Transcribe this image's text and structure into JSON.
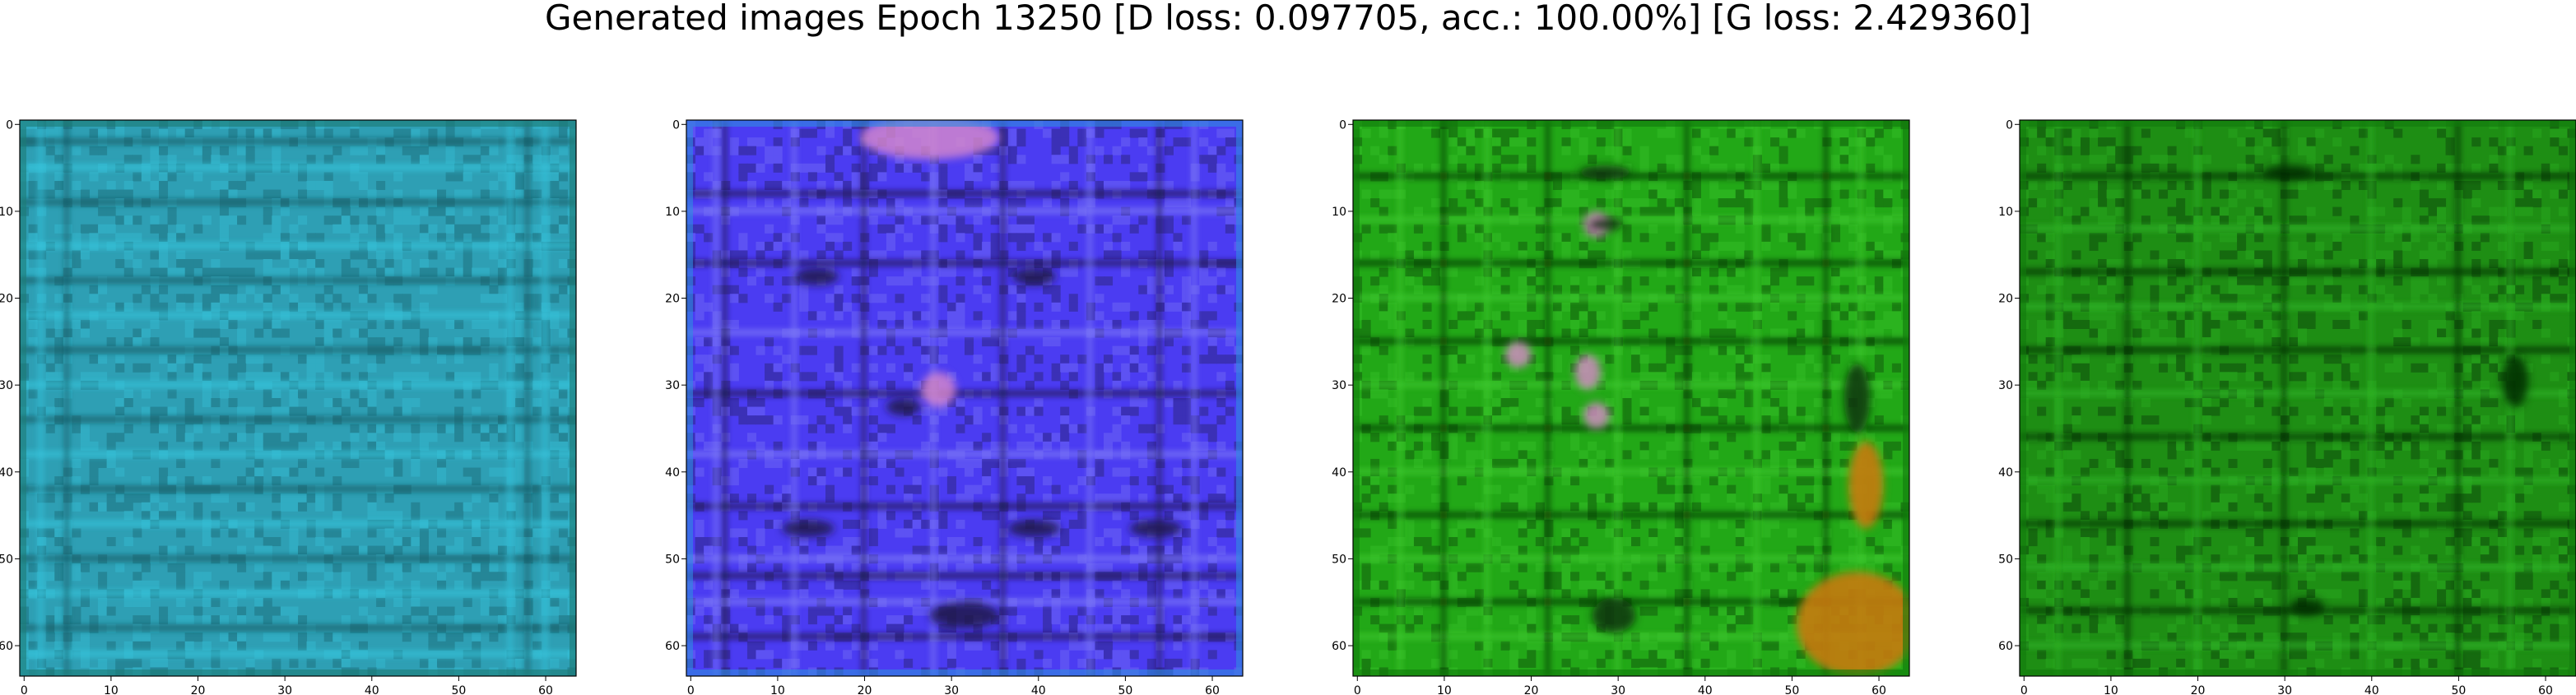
{
  "figure": {
    "title": "Generated images Epoch 13250 [D loss: 0.097705, acc.: 100.00%] [G loss: 2.429360]"
  },
  "axes_ticks": {
    "x": [
      "0",
      "10",
      "20",
      "30",
      "40",
      "50",
      "60"
    ],
    "y": [
      "0",
      "10",
      "20",
      "30",
      "40",
      "50",
      "60"
    ],
    "range": [
      0,
      63
    ]
  },
  "panels": [
    {
      "description": "generated-image-1",
      "base_color": "#2e9fb4",
      "stripe_color": "#37c6de",
      "dark_color": "#155a63",
      "border_color": "#1c7c74",
      "horizontal_stripes": [
        2,
        5,
        9,
        14,
        18,
        22,
        26,
        30,
        34,
        38,
        42,
        46,
        50,
        54,
        58,
        61
      ],
      "vertical_stripes": [
        2,
        5,
        56,
        58,
        60
      ],
      "dark_spots": []
    },
    {
      "description": "generated-image-2",
      "base_color": "#4b3cf2",
      "stripe_color": "#7f7cf6",
      "dark_color": "#1e1a4a",
      "border_color": "#2f8ce0",
      "horizontal_stripes": [
        8,
        10,
        16,
        24,
        31,
        38,
        44,
        50,
        52,
        55,
        59
      ],
      "vertical_stripes": [
        3,
        4,
        12,
        20,
        28,
        36,
        46,
        54,
        58
      ],
      "dark_spots": [
        [
          32,
          57,
          4,
          1.5
        ],
        [
          14,
          47,
          3,
          1
        ],
        [
          40,
          47,
          3,
          1
        ],
        [
          54,
          47,
          3,
          1
        ],
        [
          15,
          18,
          2.5,
          1
        ],
        [
          40,
          18,
          2.5,
          1
        ],
        [
          25,
          33,
          2,
          1
        ]
      ],
      "pink_spots": [
        [
          28,
          2,
          8,
          2.5
        ],
        [
          29,
          31,
          2,
          2
        ]
      ]
    },
    {
      "description": "generated-image-3",
      "base_color": "#22a817",
      "stripe_color": "#3ec92f",
      "dark_color": "#0a3408",
      "border_color": "#117a0c",
      "horizontal_stripes": [
        6,
        11,
        16,
        20,
        25,
        30,
        35,
        40,
        45,
        50,
        55,
        59
      ],
      "vertical_stripes": [
        5,
        10,
        15,
        22,
        30,
        38,
        46,
        54,
        58
      ],
      "dark_spots": [
        [
          29,
          6,
          3,
          0.8
        ],
        [
          29,
          12,
          2,
          0.8
        ],
        [
          30,
          57,
          2.5,
          2
        ],
        [
          58,
          32,
          1.5,
          4
        ]
      ],
      "orange_spots": [
        [
          58,
          58,
          7,
          6
        ],
        [
          59,
          42,
          2,
          5
        ]
      ],
      "pink_spots": [
        [
          28,
          12,
          1.5,
          1.5
        ],
        [
          19,
          27,
          1.5,
          1.5
        ],
        [
          27,
          29,
          1.5,
          2
        ],
        [
          28,
          34,
          1.5,
          1.5
        ]
      ]
    },
    {
      "description": "generated-image-4",
      "base_color": "#1e8e14",
      "stripe_color": "#2eb424",
      "dark_color": "#072807",
      "border_color": "#117a0c",
      "horizontal_stripes": [
        6,
        12,
        17,
        21,
        26,
        31,
        36,
        41,
        46,
        51,
        56,
        60
      ],
      "vertical_stripes": [
        4,
        12,
        20,
        30,
        40,
        50,
        56
      ],
      "dark_spots": [
        [
          31,
          6,
          3,
          0.8
        ],
        [
          33,
          56,
          2,
          1
        ],
        [
          57,
          30,
          1.5,
          3
        ]
      ]
    }
  ]
}
